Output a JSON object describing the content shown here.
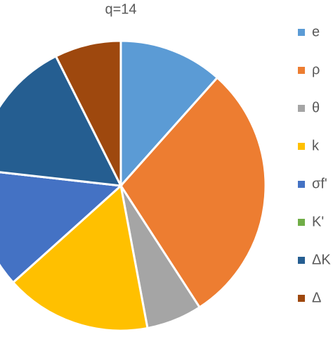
{
  "chart_data": {
    "type": "pie",
    "title": "q=14",
    "categories": [
      "e",
      "ρ",
      "θ",
      "k",
      "σf'",
      "K'",
      "ΔK",
      "Δ"
    ],
    "values": [
      11.6,
      29.2,
      6.2,
      16.3,
      13.4,
      0,
      15.8,
      7.4
    ],
    "colors": [
      "#5b9bd5",
      "#ed7d31",
      "#a5a5a5",
      "#ffc000",
      "#4472c4",
      "#70ad47",
      "#255e91",
      "#9e480e"
    ]
  }
}
